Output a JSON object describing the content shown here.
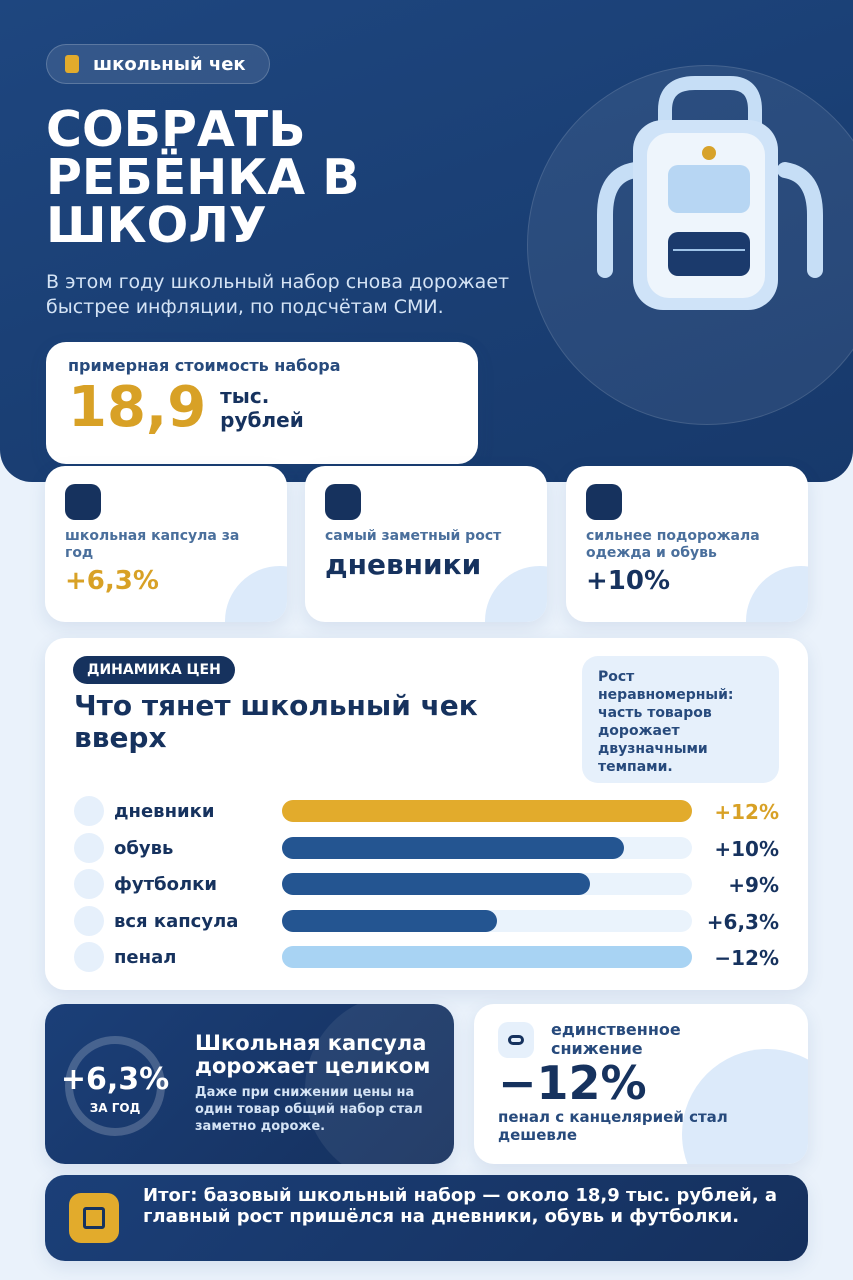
{
  "badge": "школьный чек",
  "title": "СОБРАТЬ РЕБЁНКА В ШКОЛУ",
  "subtitle": "В этом году школьный набор снова дорожает быстрее инфляции, по подсчётам СМИ.",
  "cost": {
    "label": "примерная стоимость набора",
    "value": "18,9",
    "unit": "тыс. рублей"
  },
  "cards": [
    {
      "label": "школьная капсула за год",
      "value": "+6,3%"
    },
    {
      "label": "самый заметный рост",
      "value": "дневники"
    },
    {
      "label": "сильнее подорожала одежда и обувь",
      "value": "+10%"
    }
  ],
  "chart_data": {
    "type": "bar",
    "tag": "ДИНАМИКА ЦЕН",
    "title": "Что тянет школьный чек вверх",
    "note": "Рост неравномерный: часть товаров дорожает двузначными темпами.",
    "categories": [
      "дневники",
      "обувь",
      "футболки",
      "вся капсула",
      "пенал"
    ],
    "values": [
      12,
      10,
      9,
      6.3,
      -12
    ],
    "value_labels": [
      "+12%",
      "+10%",
      "+9%",
      "+6,3%",
      "−12%"
    ],
    "colors": [
      "#e2ab2c",
      "#245591",
      "#245591",
      "#245591",
      "#a8d3f3"
    ],
    "xlim": [
      0,
      12
    ]
  },
  "capsule": {
    "value": "+6,3%",
    "sub": "ЗА ГОД",
    "title": "Школьная капсула дорожает целиком",
    "text": "Даже при снижении цены на один товар общий набор стал заметно дороже."
  },
  "decline": {
    "label": "единственное снижение",
    "value": "−12%",
    "text": "пенал с канцелярией стал дешевле"
  },
  "summary": "Итог: базовый школьный набор — около 18,9 тыс. рублей, а главный рост пришёлся на дневники, обувь и футболки."
}
